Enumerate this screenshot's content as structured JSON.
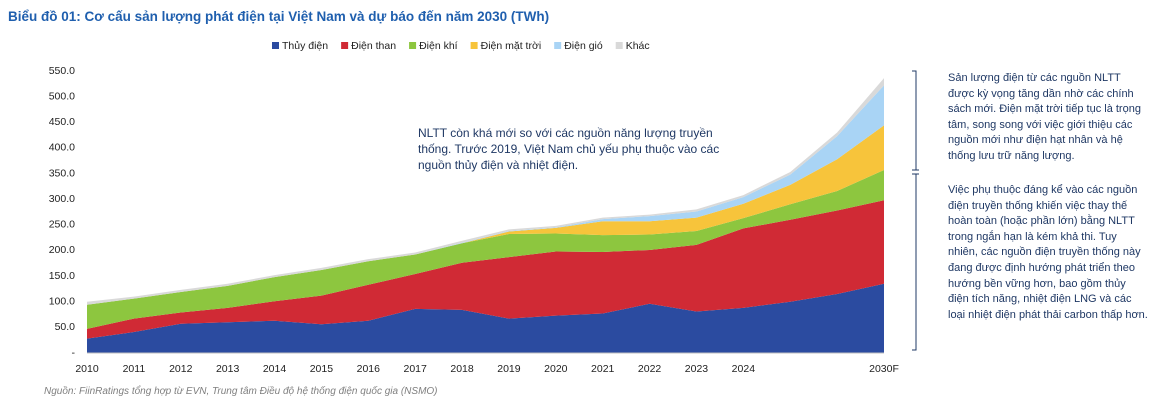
{
  "chart_data": {
    "type": "stacked_area",
    "title": "Biểu đồ 01: Cơ cấu sản lượng phát điện tại Việt Nam và dự báo đến năm 2030 (TWh)",
    "categories": [
      "2010",
      "2011",
      "2012",
      "2013",
      "2014",
      "2015",
      "2016",
      "2017",
      "2018",
      "2019",
      "2020",
      "2021",
      "2022",
      "2023",
      "2024",
      null,
      null,
      "2030F"
    ],
    "series": [
      {
        "name": "Thủy điện",
        "color": "#2b4ba0",
        "values": [
          28,
          41,
          57,
          60,
          63,
          56,
          63,
          86,
          84,
          67,
          73,
          77,
          96,
          81,
          88,
          100,
          115,
          135
        ]
      },
      {
        "name": "Điện than",
        "color": "#d02a35",
        "values": [
          19,
          26,
          22,
          28,
          38,
          56,
          70,
          68,
          92,
          120,
          125,
          120,
          105,
          130,
          155,
          160,
          163,
          163
        ]
      },
      {
        "name": "Điện khí",
        "color": "#8dc63f",
        "values": [
          47,
          39,
          40,
          43,
          47,
          50,
          46,
          38,
          38,
          45,
          35,
          33,
          30,
          27,
          20,
          30,
          38,
          59
        ]
      },
      {
        "name": "Điện mặt trời",
        "color": "#f7c43b",
        "values": [
          0,
          0,
          0,
          0,
          0,
          0,
          0,
          0,
          0,
          5,
          11,
          27,
          26,
          26,
          28,
          38,
          62,
          87
        ]
      },
      {
        "name": "Điện gió",
        "color": "#a9d4f5",
        "values": [
          0,
          0,
          0,
          0,
          0,
          0,
          0,
          0,
          1,
          1,
          1,
          4,
          10,
          12,
          13,
          20,
          45,
          78
        ]
      },
      {
        "name": "Khác",
        "color": "#d9d9d9",
        "values": [
          6,
          4,
          4,
          4,
          4,
          4,
          4,
          4,
          4,
          3,
          3,
          3,
          3,
          4,
          4,
          5,
          7,
          14
        ]
      }
    ],
    "ylim": [
      0,
      550
    ],
    "yticks": [
      {
        "value": 0,
        "label": "-"
      },
      {
        "value": 50,
        "label": "50.0"
      },
      {
        "value": 100,
        "label": "100.0"
      },
      {
        "value": 150,
        "label": "150.0"
      },
      {
        "value": 200,
        "label": "200.0"
      },
      {
        "value": 250,
        "label": "250.0"
      },
      {
        "value": 300,
        "label": "300.0"
      },
      {
        "value": 350,
        "label": "350.0"
      },
      {
        "value": 400,
        "label": "400.0"
      },
      {
        "value": 450,
        "label": "450.0"
      },
      {
        "value": 500,
        "label": "500.0"
      },
      {
        "value": 550,
        "label": "550.0"
      }
    ],
    "annotation": "NLTT còn khá mới so với các nguồn năng lượng truyền thống. Trước 2019, Việt Nam chủ yếu phụ thuộc vào các nguồn thủy điện và nhiệt điện.",
    "source": "Nguồn: FiinRatings tổng hợp từ EVN, Trung tâm Điều độ hệ thống điện quốc gia (NSMO)"
  },
  "side_notes": [
    "Sản lượng điện từ các nguồn NLTT được kỳ vọng tăng dần nhờ các chính sách mới. Điện mặt trời tiếp tục là trọng tâm, song song với việc giới thiệu các nguồn mới như điện hạt nhân và hệ thống lưu trữ năng lượng.",
    "Việc phụ thuộc đáng kể vào các nguồn điện truyền thống khiến việc thay thế hoàn toàn (hoặc phần lớn)  bằng NLTT trong ngắn hạn là kém khả thi. Tuy nhiên, các nguồn điện truyền thống này đang được định hướng phát triển theo hướng bền vững hơn, bao gồm thủy điện tích năng, nhiệt điện LNG và các loại nhiệt điện phát thải carbon thấp hơn."
  ]
}
